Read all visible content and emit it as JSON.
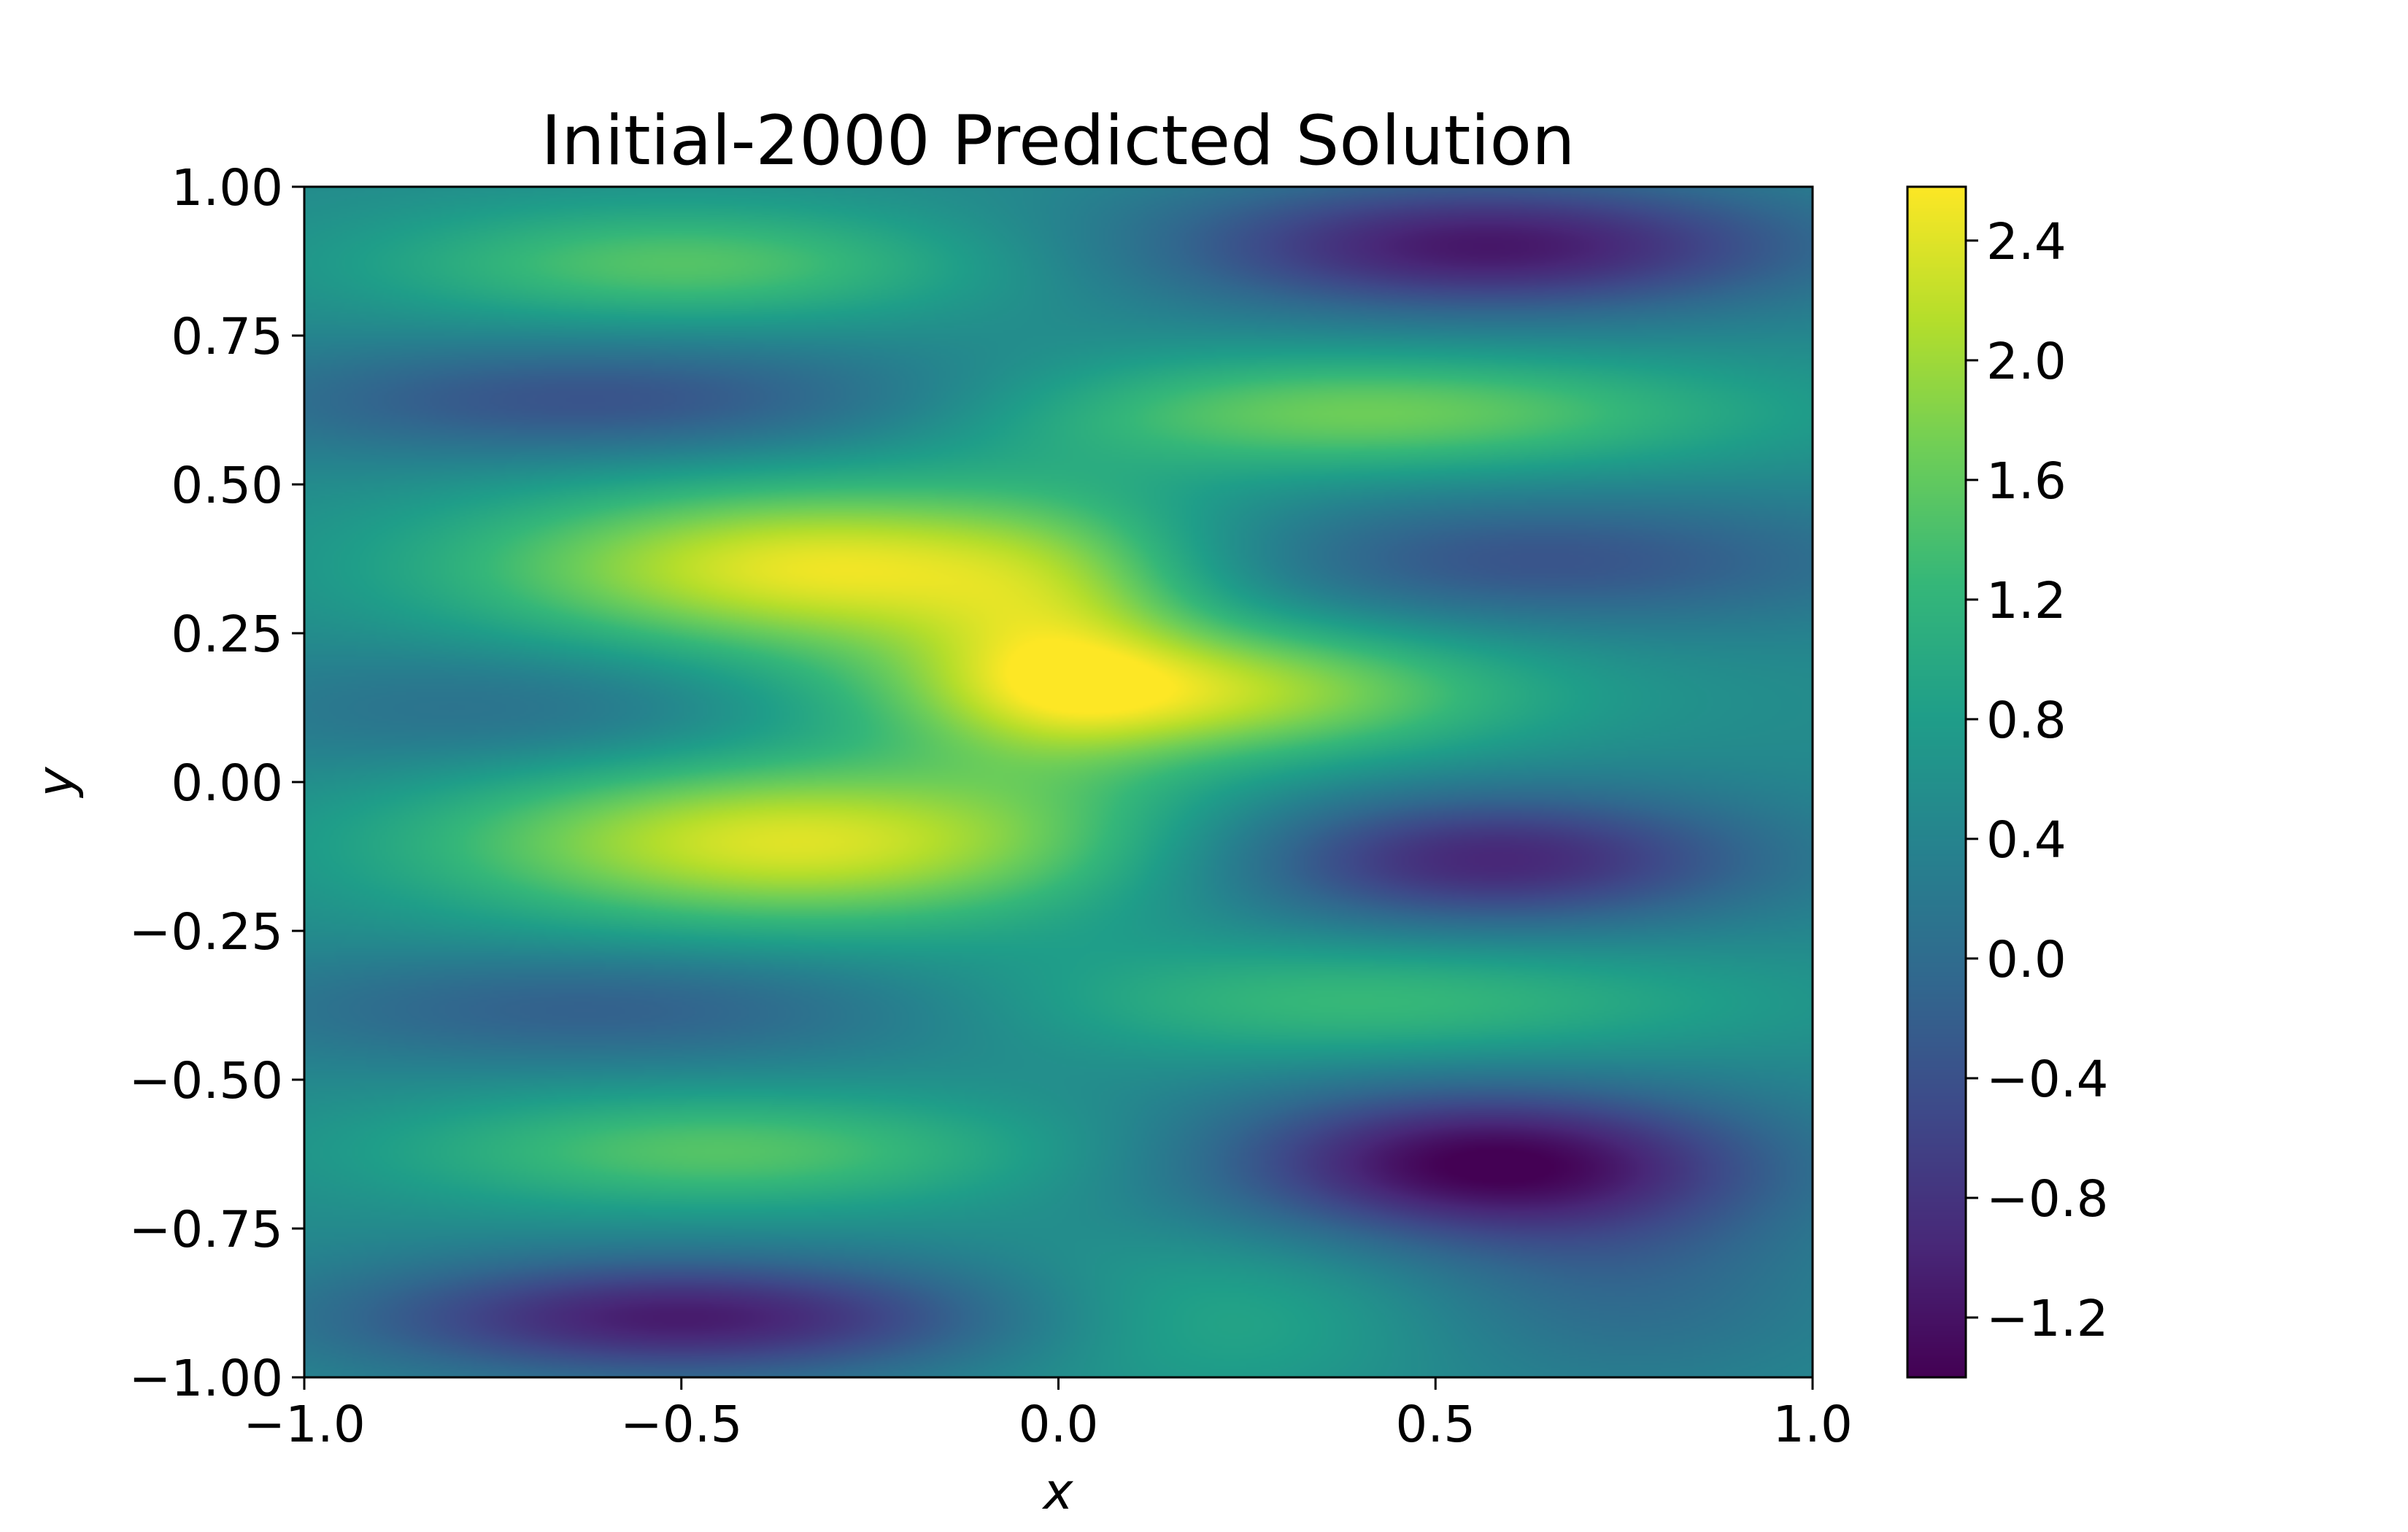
{
  "chart_data": {
    "type": "heatmap",
    "title": "Initial-2000 Predicted Solution",
    "xlabel": "x",
    "ylabel": "y",
    "xlim": [
      -1.0,
      1.0
    ],
    "ylim": [
      -1.0,
      1.0
    ],
    "x_ticks": [
      -1.0,
      -0.5,
      0.0,
      0.5,
      1.0
    ],
    "x_tick_labels": [
      "−1.0",
      "−0.5",
      "0.0",
      "0.5",
      "1.0"
    ],
    "y_ticks": [
      -1.0,
      -0.75,
      -0.5,
      -0.25,
      0.0,
      0.25,
      0.5,
      0.75,
      1.0
    ],
    "y_tick_labels": [
      "−1.00",
      "−0.75",
      "−0.50",
      "−0.25",
      "0.00",
      "0.25",
      "0.50",
      "0.75",
      "1.00"
    ],
    "colormap": "viridis",
    "colorbar": {
      "vmin": -1.4,
      "vmax": 2.58,
      "ticks": [
        -1.2,
        -0.8,
        -0.4,
        0.0,
        0.4,
        0.8,
        1.2,
        1.6,
        2.0,
        2.4
      ],
      "tick_labels": [
        "−1.2",
        "−0.8",
        "−0.4",
        "0.0",
        "0.4",
        "0.8",
        "1.2",
        "1.6",
        "2.0",
        "2.4"
      ]
    },
    "grid": false,
    "field": {
      "base": 0.5,
      "features": [
        {
          "x": -0.3,
          "y": 0.36,
          "amp": 2.0,
          "sx": 0.33,
          "sy": 0.1
        },
        {
          "x": -0.35,
          "y": -0.1,
          "amp": 1.9,
          "sx": 0.33,
          "sy": 0.1
        },
        {
          "x": 0.15,
          "y": 0.15,
          "amp": 1.7,
          "sx": 0.3,
          "sy": 0.08
        },
        {
          "x": 0.0,
          "y": 0.22,
          "amp": 0.7,
          "sx": 0.12,
          "sy": 0.14
        },
        {
          "x": 0.4,
          "y": 0.62,
          "amp": 1.2,
          "sx": 0.35,
          "sy": 0.07
        },
        {
          "x": -0.5,
          "y": 0.87,
          "amp": 1.0,
          "sx": 0.28,
          "sy": 0.07
        },
        {
          "x": -0.45,
          "y": -0.62,
          "amp": 1.0,
          "sx": 0.3,
          "sy": 0.07
        },
        {
          "x": 0.4,
          "y": -0.37,
          "amp": 0.8,
          "sx": 0.35,
          "sy": 0.07
        },
        {
          "x": 0.2,
          "y": -0.9,
          "amp": 0.5,
          "sx": 0.2,
          "sy": 0.1
        },
        {
          "x": 0.57,
          "y": 0.9,
          "amp": -1.65,
          "sx": 0.3,
          "sy": 0.08
        },
        {
          "x": 0.6,
          "y": 0.37,
          "amp": -0.9,
          "sx": 0.35,
          "sy": 0.08
        },
        {
          "x": 0.57,
          "y": -0.13,
          "amp": -1.5,
          "sx": 0.25,
          "sy": 0.08
        },
        {
          "x": 0.57,
          "y": -0.64,
          "amp": -1.9,
          "sx": 0.25,
          "sy": 0.09
        },
        {
          "x": -0.5,
          "y": -0.9,
          "amp": -1.6,
          "sx": 0.3,
          "sy": 0.07
        },
        {
          "x": -0.6,
          "y": 0.64,
          "amp": -0.9,
          "sx": 0.35,
          "sy": 0.07
        },
        {
          "x": -0.6,
          "y": -0.38,
          "amp": -0.7,
          "sx": 0.35,
          "sy": 0.07
        },
        {
          "x": -0.7,
          "y": 0.12,
          "amp": -0.5,
          "sx": 0.3,
          "sy": 0.08
        },
        {
          "x": 0.75,
          "y": -0.85,
          "amp": -0.5,
          "sx": 0.2,
          "sy": 0.12
        }
      ]
    }
  }
}
